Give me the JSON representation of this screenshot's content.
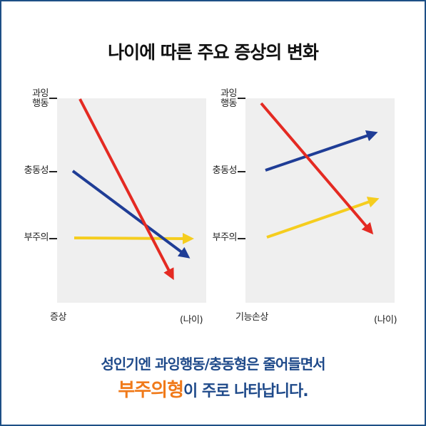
{
  "title": "나이에 따른 주요 증상의 변화",
  "left_panel": {
    "y_labels": [
      "과잉\n행동",
      "충동성",
      "부주의"
    ],
    "x_start": "증상",
    "x_end": "(나이)"
  },
  "right_panel": {
    "y_labels": [
      "과잉\n행동",
      "충동성",
      "부주의"
    ],
    "x_start": "기능손상",
    "x_end": "(나이)"
  },
  "caption": {
    "line1": "성인기엔 과잉행동/충동형은 줄어들면서",
    "highlight": "부주의형",
    "line2_rest": "이 주로 나타납니다."
  },
  "colors": {
    "hyperactivity": "#e42a22",
    "impulsivity": "#1f3d96",
    "inattention": "#f5cd1e",
    "plot_bg": "#efefef",
    "caption_text": "#1f4a8a",
    "highlight": "#f07a1a"
  }
}
